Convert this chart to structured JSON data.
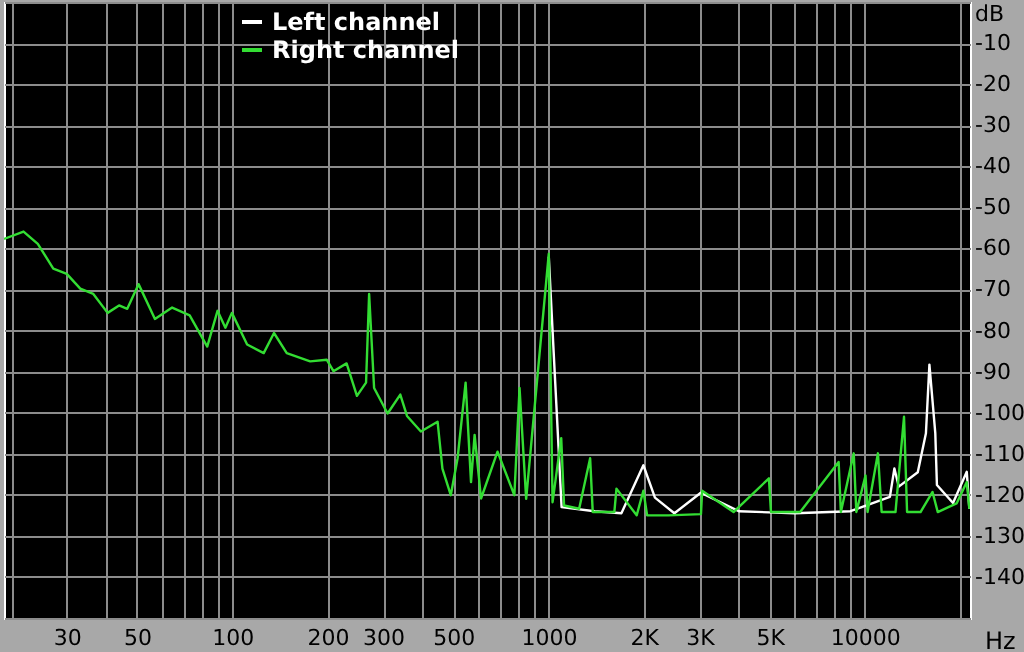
{
  "chart_data": {
    "type": "line",
    "xlabel": "Hz",
    "ylabel": "dB",
    "log": "x",
    "grid": true,
    "legend": "top left",
    "xlim": [
      19,
      21500
    ],
    "xticks": [
      {
        "value": 20,
        "label": null
      },
      30,
      {
        "value": 40,
        "label": null
      },
      50,
      {
        "value": 60,
        "label": null
      },
      {
        "value": 70,
        "label": null
      },
      {
        "value": 80,
        "label": null
      },
      {
        "value": 90,
        "label": null
      },
      100,
      200,
      300,
      {
        "value": 400,
        "label": null
      },
      500,
      {
        "value": 600,
        "label": null
      },
      {
        "value": 700,
        "label": null
      },
      {
        "value": 800,
        "label": null
      },
      {
        "value": 900,
        "label": null
      },
      1000,
      {
        "value": 2000,
        "label": "2K"
      },
      {
        "value": 3000,
        "label": "3K"
      },
      {
        "value": 4000,
        "label": null
      },
      {
        "value": 5000,
        "label": "5K"
      },
      {
        "value": 6000,
        "label": null
      },
      {
        "value": 7000,
        "label": null
      },
      {
        "value": 8000,
        "label": null
      },
      {
        "value": 9000,
        "label": null
      },
      10000,
      {
        "value": 20000,
        "label": null
      }
    ],
    "ylim": [
      -150,
      0
    ],
    "yticks": [
      {
        "value": 0,
        "label": null
      },
      -10,
      -20,
      -30,
      -40,
      -50,
      -60,
      -70,
      -80,
      -90,
      -100,
      -110,
      -120,
      -130,
      -140,
      {
        "value": -150,
        "label": null
      }
    ],
    "series": [
      {
        "name": "Left channel",
        "color": "#ffffff",
        "x": [
          1002,
          1100,
          1400,
          1700,
          1995,
          2170,
          2500,
          3030,
          4000,
          6000,
          9000,
          12000,
          12400,
          12800,
          14700,
          15600,
          16000,
          16700,
          16900,
          19000,
          21000,
          21400
        ],
        "values": [
          -62,
          -123,
          -124,
          -124.5,
          -112.8,
          -120.7,
          -124.5,
          -119.5,
          -124,
          -124.5,
          -124,
          -120.5,
          -113.6,
          -118,
          -114.5,
          -105,
          -88.3,
          -105,
          -117.6,
          -122,
          -114.4,
          -123.4
        ]
      },
      {
        "name": "Right channel",
        "color": "#33dd33",
        "x": [
          19,
          21.9,
          24.3,
          27.2,
          30,
          33.1,
          36.4,
          40.4,
          43.9,
          46.6,
          50.6,
          57,
          64.6,
          73.4,
          83.4,
          89.9,
          95.2,
          99.8,
          111.5,
          125.8,
          135.6,
          148.8,
          176.4,
          199,
          209,
          230,
          248,
          265,
          271,
          281,
          310,
          340,
          357,
          395,
          446,
          462,
          491,
          516,
          547,
          569,
          584,
          612,
          690,
          780,
          810,
          850,
          1002,
          1030,
          1097,
          1120,
          1250,
          1354,
          1380,
          1615,
          1640,
          1900,
          1995,
          2050,
          2395,
          3034,
          3060,
          3846,
          4975,
          5050,
          6243,
          8264,
          8400,
          9223,
          9400,
          10050,
          10200,
          11000,
          11300,
          12500,
          13300,
          13600,
          15000,
          16370,
          17000,
          19500,
          21000,
          21400
        ],
        "values": [
          -57.7,
          -55.9,
          -58.9,
          -64.9,
          -66.2,
          -69.8,
          -71.1,
          -75.7,
          -73.9,
          -74.7,
          -68.7,
          -77.2,
          -74.4,
          -76.3,
          -83.9,
          -75.2,
          -79.3,
          -75.7,
          -83.4,
          -85.5,
          -80.6,
          -85.5,
          -87.5,
          -87.1,
          -89.9,
          -88,
          -95.9,
          -92.7,
          -71.1,
          -94,
          -100.2,
          -95.6,
          -100.8,
          -104.6,
          -102.2,
          -113.6,
          -120.1,
          -111.1,
          -92.7,
          -116.9,
          -105.4,
          -120.9,
          -109.5,
          -120.1,
          -94,
          -121,
          -61.3,
          -121.8,
          -106.2,
          -122.6,
          -123.4,
          -111.1,
          -124.2,
          -124.2,
          -118.5,
          -125,
          -119,
          -125,
          -125,
          -124.7,
          -119,
          -124.2,
          -116,
          -124.2,
          -124.2,
          -112,
          -124.2,
          -109.9,
          -124.2,
          -115.3,
          -124.2,
          -109.9,
          -124.2,
          -124.2,
          -101,
          -124.2,
          -124.2,
          -119.3,
          -124.2,
          -122.1,
          -116.9,
          -123.4
        ]
      }
    ]
  }
}
